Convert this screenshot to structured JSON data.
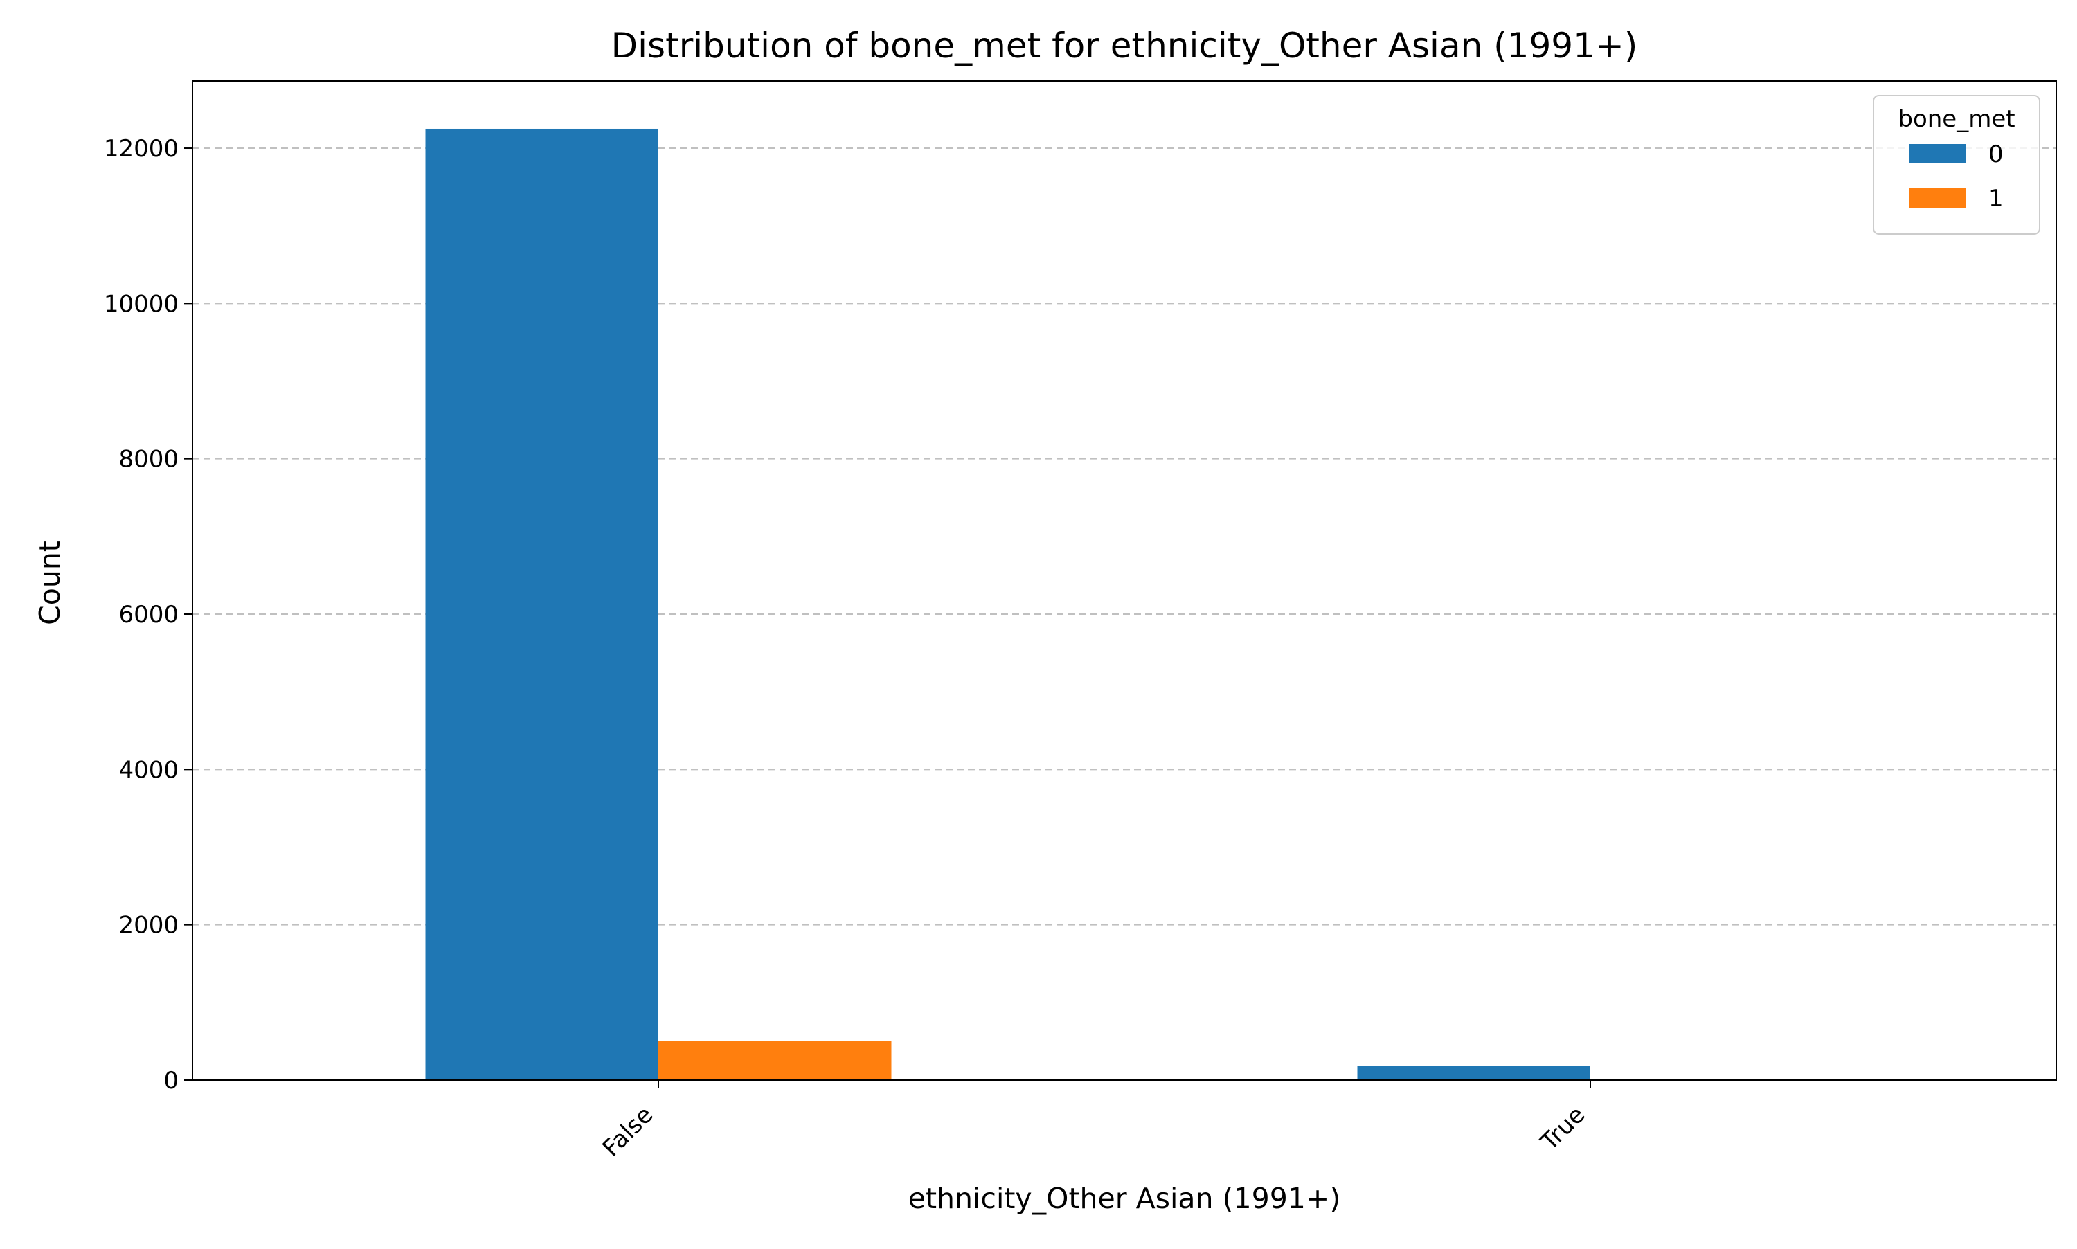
{
  "chart_data": {
    "type": "bar",
    "title": "Distribution of bone_met for ethnicity_Other Asian (1991+)",
    "xlabel": "ethnicity_Other Asian (1991+)",
    "ylabel": "Count",
    "categories": [
      "False",
      "True"
    ],
    "series": [
      {
        "name": "0",
        "values": [
          12250,
          180
        ],
        "color": "#1f77b4"
      },
      {
        "name": "1",
        "values": [
          500,
          0
        ],
        "color": "#ff7f0e"
      }
    ],
    "ylim": [
      0,
      12865
    ],
    "yticks": [
      0,
      2000,
      4000,
      6000,
      8000,
      10000,
      12000
    ],
    "grid": {
      "y": true,
      "style": "dashed"
    },
    "legend": {
      "title": "bone_met",
      "placement": "top-right"
    }
  }
}
